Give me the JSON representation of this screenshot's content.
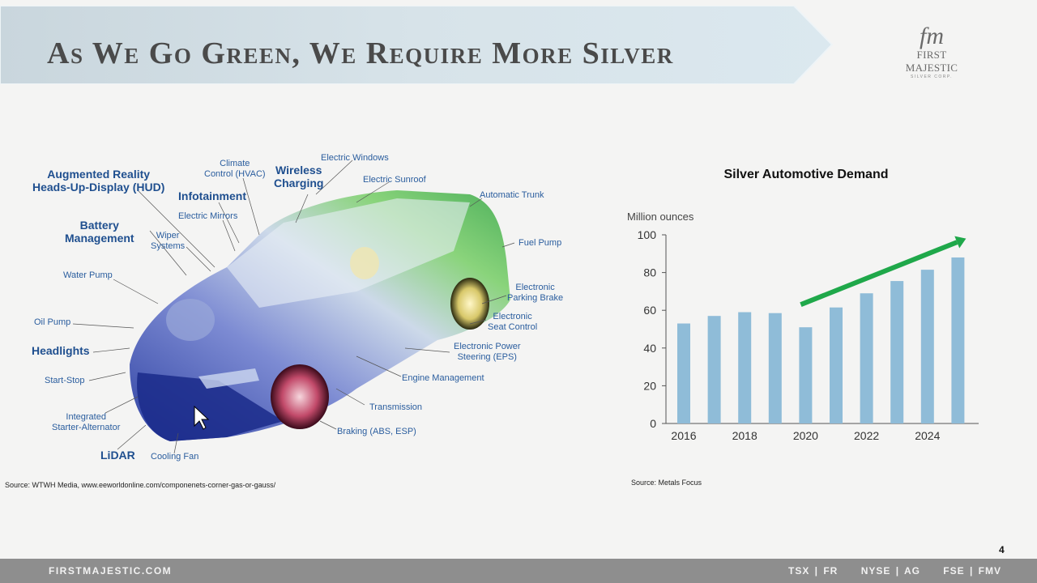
{
  "header": {
    "title": "As We Go Green, We Require More Silver",
    "logo_mark": "fm",
    "logo_name": "FIRST MAJESTIC",
    "logo_sub": "SILVER CORP."
  },
  "diagram": {
    "labels": [
      {
        "id": "ar-hud",
        "text": "Augmented Reality\nHeads-Up-Display (HUD)",
        "big": true
      },
      {
        "id": "climate",
        "text": "Climate\nControl (HVAC)",
        "big": false
      },
      {
        "id": "wireless",
        "text": "Wireless\nCharging",
        "big": true
      },
      {
        "id": "windows",
        "text": "Electric Windows",
        "big": false
      },
      {
        "id": "sunroof",
        "text": "Electric Sunroof",
        "big": false
      },
      {
        "id": "infotainment",
        "text": "Infotainment",
        "big": true
      },
      {
        "id": "trunk",
        "text": "Automatic Trunk",
        "big": false
      },
      {
        "id": "mirrors",
        "text": "Electric Mirrors",
        "big": false
      },
      {
        "id": "battery",
        "text": "Battery\nManagement",
        "big": true
      },
      {
        "id": "wiper",
        "text": "Wiper\nSystems",
        "big": false
      },
      {
        "id": "fuel",
        "text": "Fuel Pump",
        "big": false
      },
      {
        "id": "water",
        "text": "Water Pump",
        "big": false
      },
      {
        "id": "parking",
        "text": "Electronic\nParking Brake",
        "big": false
      },
      {
        "id": "oil",
        "text": "Oil Pump",
        "big": false
      },
      {
        "id": "seat",
        "text": "Electronic\nSeat Control",
        "big": false
      },
      {
        "id": "headlights",
        "text": "Headlights",
        "big": true
      },
      {
        "id": "eps",
        "text": "Electronic Power\nSteering (EPS)",
        "big": false
      },
      {
        "id": "startstop",
        "text": "Start-Stop",
        "big": false
      },
      {
        "id": "engine",
        "text": "Engine Management",
        "big": false
      },
      {
        "id": "transmission",
        "text": "Transmission",
        "big": false
      },
      {
        "id": "starter",
        "text": "Integrated\nStarter-Alternator",
        "big": false
      },
      {
        "id": "braking",
        "text": "Braking (ABS, ESP)",
        "big": false
      },
      {
        "id": "lidar",
        "text": "LiDAR",
        "big": true
      },
      {
        "id": "cooling",
        "text": "Cooling Fan",
        "big": false
      }
    ],
    "source": "Source: WTWH Media, www.eeworldonline.com/componenets-corner-gas-or-gauss/"
  },
  "chart_data": {
    "type": "bar",
    "title": "Silver Automotive Demand",
    "ylabel": "Million ounces",
    "categories": [
      "2016",
      "2017",
      "2018",
      "2019",
      "2020",
      "2021",
      "2022",
      "2023",
      "2024",
      "2025"
    ],
    "tick_labels_x": [
      "2016",
      "2018",
      "2020",
      "2022",
      "2024"
    ],
    "values": [
      53,
      57,
      59,
      58.5,
      51,
      61.5,
      69,
      75.5,
      81.5,
      88
    ],
    "ylim": [
      0,
      100
    ],
    "yticks": [
      0,
      20,
      40,
      60,
      80,
      100
    ],
    "bar_color": "#8fbcd8",
    "trend_arrow_color": "#1fa84a",
    "grid": false
  },
  "chart_source": "Source: Metals Focus",
  "page_number": "4",
  "footer": {
    "site": "FIRSTMAJESTIC.COM",
    "exchanges": [
      "TSX | FR",
      "NYSE | AG",
      "FSE | FMV"
    ]
  }
}
